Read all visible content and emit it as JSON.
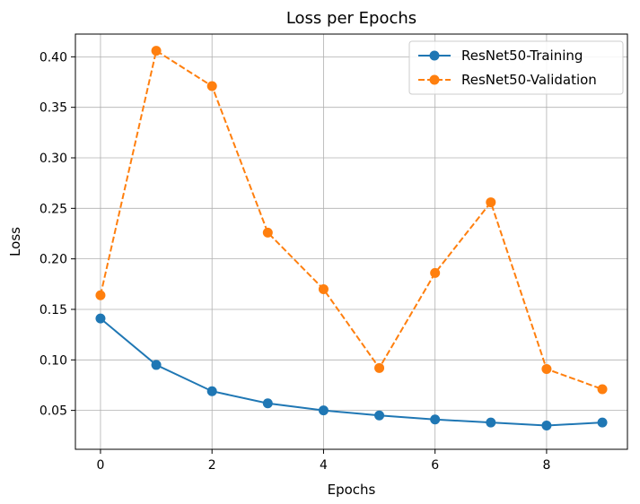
{
  "chart_data": {
    "type": "line",
    "title": "Loss per Epochs",
    "xlabel": "Epochs",
    "ylabel": "Loss",
    "xlim": [
      -0.45,
      9.45
    ],
    "ylim": [
      0.0115,
      0.4225
    ],
    "xticks": [
      0,
      2,
      4,
      6,
      8
    ],
    "yticks": [
      0.05,
      0.1,
      0.15,
      0.2,
      0.25,
      0.3,
      0.35,
      0.4
    ],
    "grid": true,
    "legend_position": "top-right",
    "x": [
      0,
      1,
      2,
      3,
      4,
      5,
      6,
      7,
      8,
      9
    ],
    "series": [
      {
        "name": "ResNet50-Training",
        "color": "#1f77b4",
        "style": "solid",
        "values": [
          0.141,
          0.095,
          0.069,
          0.057,
          0.05,
          0.045,
          0.041,
          0.038,
          0.035,
          0.038
        ]
      },
      {
        "name": "ResNet50-Validation",
        "color": "#ff7f0e",
        "style": "dashed",
        "values": [
          0.164,
          0.406,
          0.371,
          0.226,
          0.17,
          0.092,
          0.186,
          0.256,
          0.091,
          0.071
        ]
      }
    ]
  }
}
